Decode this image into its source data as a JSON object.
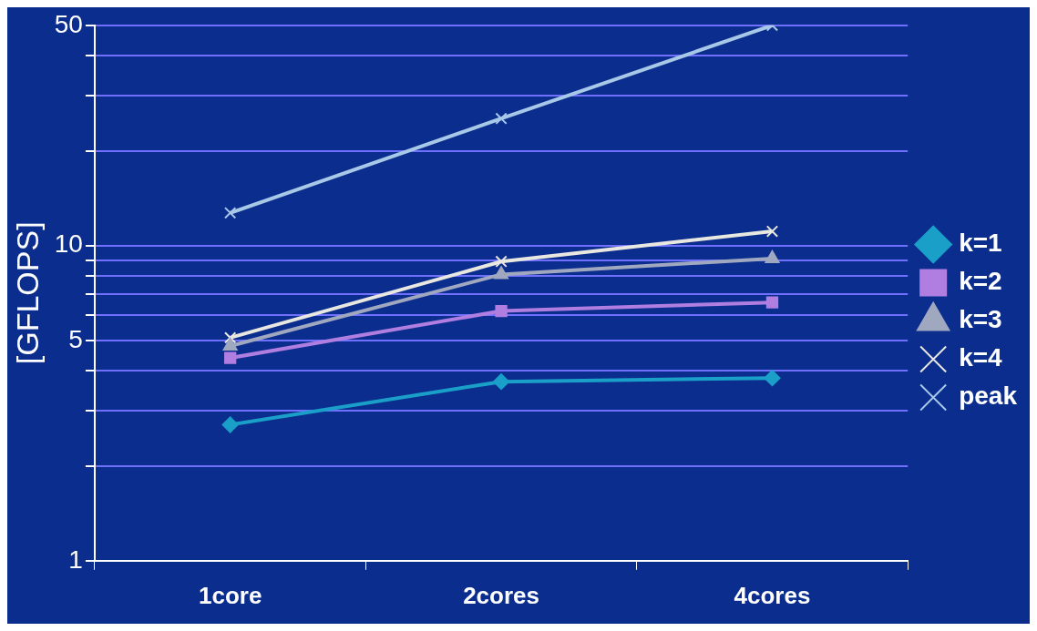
{
  "chart_data": {
    "type": "line",
    "ylabel": "[GFLOPS]",
    "categories": [
      "1core",
      "2cores",
      "4cores"
    ],
    "series": [
      {
        "name": "k=1",
        "color": "#1aa0c8",
        "marker": "diamond",
        "values": [
          2.7,
          3.7,
          3.8
        ]
      },
      {
        "name": "k=2",
        "color": "#b07ee0",
        "marker": "square",
        "values": [
          4.4,
          6.2,
          6.6
        ]
      },
      {
        "name": "k=3",
        "color": "#a0a8c0",
        "marker": "triangle",
        "values": [
          4.8,
          8.1,
          9.1
        ]
      },
      {
        "name": "k=4",
        "color": "#e8e8e0",
        "marker": "cross",
        "values": [
          5.1,
          8.9,
          11.1
        ]
      },
      {
        "name": "peak",
        "color": "#a8c8e8",
        "marker": "cross",
        "values": [
          12.7,
          25.3,
          50
        ]
      }
    ],
    "log": "y",
    "ylim": [
      1,
      50
    ],
    "yticks": [
      1,
      {
        "value": 2,
        "label": null
      },
      {
        "value": 3,
        "label": null
      },
      {
        "value": 4,
        "label": null
      },
      5,
      {
        "value": 6,
        "label": null
      },
      {
        "value": 7,
        "label": null
      },
      {
        "value": 8,
        "label": null
      },
      {
        "value": 9,
        "label": null
      },
      10,
      {
        "value": 20,
        "label": null
      },
      {
        "value": 30,
        "label": null
      },
      {
        "value": 40,
        "label": null
      },
      50
    ],
    "grid": "y",
    "legend": "right"
  }
}
